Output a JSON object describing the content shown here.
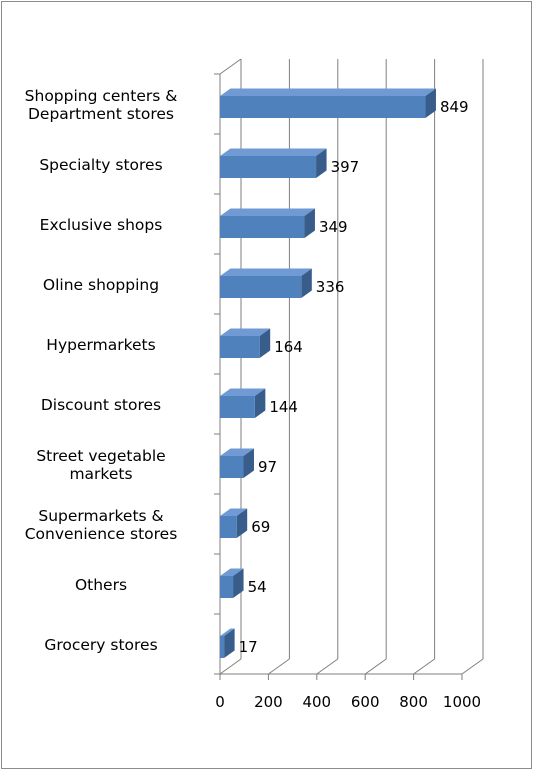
{
  "chart_data": {
    "type": "bar",
    "orientation": "horizontal",
    "style": "3d",
    "categories": [
      "Shopping centers & Department stores",
      "Specialty stores",
      "Exclusive shops",
      "Oline shopping",
      "Hypermarkets",
      "Discount stores",
      "Street vegetable markets",
      "Supermarkets & Convenience stores",
      "Others",
      "Grocery stores"
    ],
    "category_lines": [
      [
        "Shopping centers &",
        "Department stores"
      ],
      [
        "Specialty stores"
      ],
      [
        "Exclusive shops"
      ],
      [
        "Oline shopping"
      ],
      [
        "Hypermarkets"
      ],
      [
        "Discount stores"
      ],
      [
        "Street vegetable",
        "markets"
      ],
      [
        "Supermarkets &",
        "Convenience stores"
      ],
      [
        "Others"
      ],
      [
        "Grocery stores"
      ]
    ],
    "values": [
      849,
      397,
      349,
      336,
      164,
      144,
      97,
      69,
      54,
      17
    ],
    "data_labels": [
      "849",
      "397",
      "349",
      "336",
      "164",
      "144",
      "97",
      "69",
      "54",
      "17"
    ],
    "xlim": [
      0,
      1000
    ],
    "xticks": [
      "0",
      "200",
      "400",
      "600",
      "800",
      "1000"
    ],
    "grid": "vertical",
    "legend": "none",
    "title": "",
    "xlabel": "",
    "ylabel": "",
    "colors": {
      "bar_front": "#4f81bd",
      "bar_top": "#6f9ad3",
      "bar_side": "#385d8a",
      "grid": "#7f7f7f"
    }
  }
}
